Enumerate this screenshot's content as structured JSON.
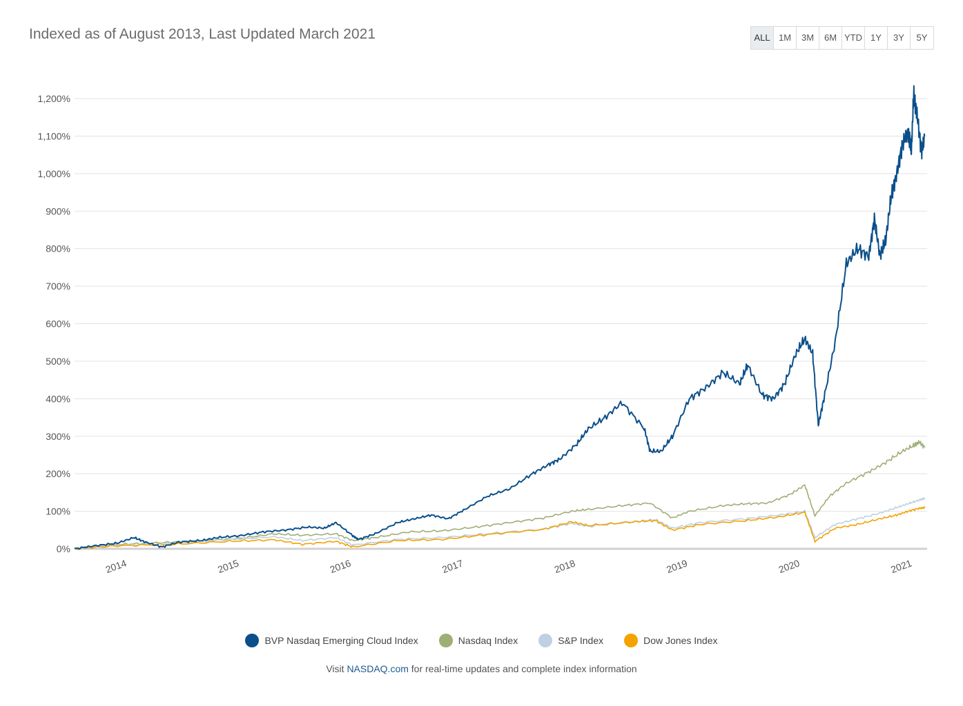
{
  "header": {
    "title": "Indexed as of August 2013, Last Updated March 2021",
    "ranges": [
      "ALL",
      "1M",
      "3M",
      "6M",
      "YTD",
      "1Y",
      "3Y",
      "5Y"
    ],
    "active_range": "ALL"
  },
  "footer": {
    "prefix": "Visit ",
    "link": "NASDAQ.com",
    "suffix": " for real-time updates and complete index information"
  },
  "colors": {
    "bvp": "#0b4f8a",
    "nasdaq": "#9fae74",
    "sp": "#bfd0e2",
    "dow": "#f3a200",
    "grid": "#e3e3e3"
  },
  "chart_data": {
    "type": "line",
    "title": "Indexed as of August 2013, Last Updated March 2021",
    "xlabel": "",
    "ylabel": "",
    "ylim": [
      0,
      1200
    ],
    "xlim": [
      2013.62,
      2021.22
    ],
    "y_ticks": [
      0,
      100,
      200,
      300,
      400,
      500,
      600,
      700,
      800,
      900,
      1000,
      1100,
      1200
    ],
    "y_tick_labels": [
      "0%",
      "100%",
      "200%",
      "300%",
      "400%",
      "500%",
      "600%",
      "700%",
      "800%",
      "900%",
      "1,000%",
      "1,100%",
      "1,200%"
    ],
    "x_ticks": [
      2014,
      2015,
      2016,
      2017,
      2018,
      2019,
      2020,
      2021
    ],
    "x_tick_labels": [
      "2014",
      "2015",
      "2016",
      "2017",
      "2018",
      "2019",
      "2020",
      "2021"
    ],
    "grid": true,
    "legend_position": "bottom",
    "series": [
      {
        "name": "BVP Nasdaq Emerging Cloud Index",
        "color": "#0b4f8a",
        "x": [
          2013.62,
          2013.8,
          2014.0,
          2014.15,
          2014.25,
          2014.4,
          2014.55,
          2014.75,
          2014.9,
          2015.1,
          2015.3,
          2015.5,
          2015.7,
          2015.85,
          2015.95,
          2016.1,
          2016.15,
          2016.3,
          2016.5,
          2016.65,
          2016.8,
          2016.95,
          2017.1,
          2017.3,
          2017.5,
          2017.7,
          2017.85,
          2017.95,
          2018.1,
          2018.2,
          2018.35,
          2018.5,
          2018.7,
          2018.75,
          2018.85,
          2018.95,
          2019.1,
          2019.25,
          2019.4,
          2019.55,
          2019.62,
          2019.75,
          2019.85,
          2019.95,
          2020.05,
          2020.13,
          2020.2,
          2020.25,
          2020.3,
          2020.4,
          2020.5,
          2020.6,
          2020.7,
          2020.75,
          2020.8,
          2020.85,
          2020.9,
          2020.95,
          2021.0,
          2021.05,
          2021.08,
          2021.1,
          2021.13,
          2021.17,
          2021.2
        ],
        "values": [
          0,
          8,
          15,
          30,
          18,
          5,
          18,
          22,
          30,
          35,
          45,
          50,
          58,
          55,
          70,
          35,
          25,
          40,
          70,
          80,
          90,
          80,
          105,
          140,
          160,
          200,
          225,
          240,
          280,
          320,
          350,
          390,
          320,
          260,
          260,
          300,
          400,
          430,
          470,
          440,
          490,
          410,
          400,
          440,
          520,
          560,
          520,
          330,
          400,
          550,
          760,
          800,
          780,
          880,
          780,
          820,
          940,
          1000,
          1080,
          1110,
          1060,
          1210,
          1160,
          1060,
          1100
        ]
      },
      {
        "name": "Nasdaq Index",
        "color": "#9fae74",
        "x": [
          2013.62,
          2013.9,
          2014.2,
          2014.5,
          2014.8,
          2015.1,
          2015.4,
          2015.65,
          2015.95,
          2016.1,
          2016.3,
          2016.6,
          2016.9,
          2017.2,
          2017.5,
          2017.8,
          2018.05,
          2018.2,
          2018.5,
          2018.75,
          2018.95,
          2019.1,
          2019.4,
          2019.6,
          2019.8,
          2020.0,
          2020.13,
          2020.22,
          2020.35,
          2020.5,
          2020.7,
          2020.85,
          2021.0,
          2021.1,
          2021.15,
          2021.2
        ],
        "values": [
          0,
          10,
          14,
          18,
          22,
          28,
          40,
          36,
          40,
          22,
          30,
          45,
          48,
          58,
          70,
          82,
          100,
          105,
          115,
          122,
          82,
          100,
          115,
          120,
          122,
          145,
          170,
          88,
          140,
          175,
          205,
          230,
          260,
          275,
          285,
          270
        ]
      },
      {
        "name": "S&P Index",
        "color": "#bfd0e2",
        "x": [
          2013.62,
          2014.0,
          2014.5,
          2015.0,
          2015.4,
          2015.65,
          2015.95,
          2016.1,
          2016.5,
          2016.9,
          2017.3,
          2017.8,
          2018.05,
          2018.2,
          2018.6,
          2018.8,
          2018.95,
          2019.2,
          2019.6,
          2019.9,
          2020.13,
          2020.22,
          2020.4,
          2020.6,
          2020.8,
          2020.95,
          2021.05,
          2021.15,
          2021.2
        ],
        "values": [
          0,
          10,
          15,
          25,
          32,
          22,
          30,
          10,
          25,
          30,
          40,
          52,
          68,
          60,
          72,
          78,
          55,
          70,
          80,
          90,
          100,
          30,
          65,
          80,
          95,
          110,
          120,
          130,
          135
        ]
      },
      {
        "name": "Dow Jones Index",
        "color": "#f3a200",
        "x": [
          2013.62,
          2014.0,
          2014.5,
          2015.0,
          2015.4,
          2015.65,
          2015.95,
          2016.1,
          2016.5,
          2016.9,
          2017.3,
          2017.8,
          2018.05,
          2018.2,
          2018.6,
          2018.8,
          2018.95,
          2019.2,
          2019.6,
          2019.9,
          2020.13,
          2020.22,
          2020.4,
          2020.6,
          2020.8,
          2020.95,
          2021.05,
          2021.15,
          2021.2
        ],
        "values": [
          0,
          8,
          12,
          20,
          24,
          12,
          20,
          5,
          22,
          25,
          38,
          52,
          72,
          62,
          72,
          75,
          50,
          65,
          75,
          85,
          97,
          20,
          55,
          65,
          80,
          90,
          100,
          108,
          110
        ]
      }
    ]
  }
}
